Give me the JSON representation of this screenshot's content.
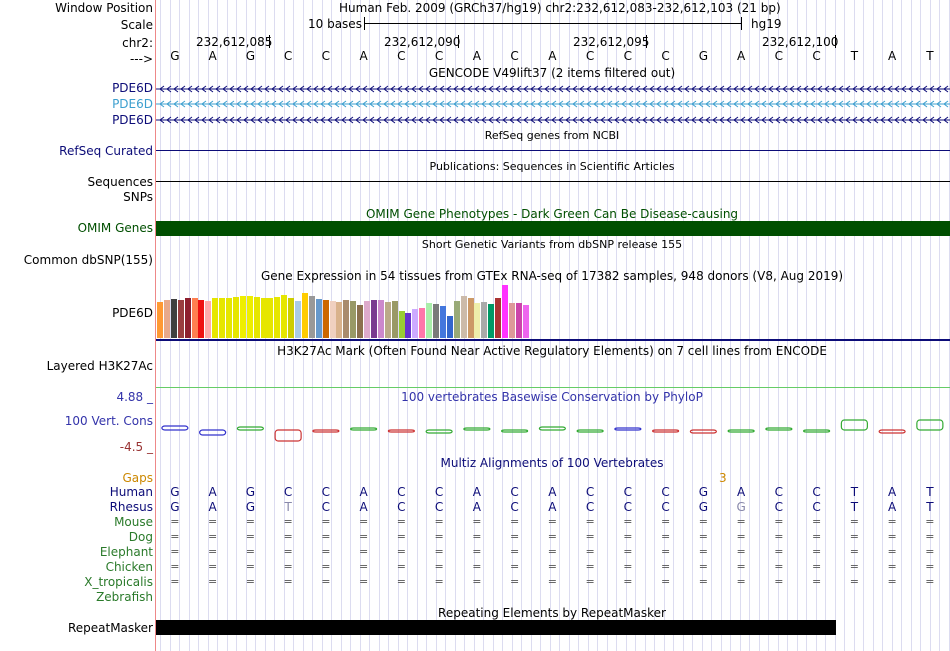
{
  "position": {
    "label": "Window Position",
    "text": "Human Feb. 2009 (GRCh37/hg19)   chr2:232,612,083-232,612,103 (21 bp)"
  },
  "scale": {
    "label": "Scale",
    "bases": "10 bases",
    "assembly": "hg19"
  },
  "chrom": {
    "label": "chr2:",
    "coords": [
      "232,612,085",
      "232,612,090",
      "232,612,095",
      "232,612,100"
    ]
  },
  "sequence": {
    "arrow": "--->",
    "bases": [
      "G",
      "A",
      "G",
      "C",
      "C",
      "A",
      "C",
      "C",
      "A",
      "C",
      "A",
      "C",
      "C",
      "C",
      "G",
      "A",
      "C",
      "C",
      "T",
      "A",
      "T"
    ]
  },
  "gencode": {
    "title": "GENCODE V49lift37 (2 items filtered out)",
    "items": [
      "PDE6D",
      "PDE6D",
      "PDE6D"
    ],
    "colors": [
      "#0c0c78",
      "#3c9fcf",
      "#0c0c78"
    ]
  },
  "refseq": {
    "title": "RefSeq genes from NCBI",
    "label": "RefSeq Curated"
  },
  "publications": {
    "title": "Publications: Sequences in Scientific Articles",
    "label": "Sequences"
  },
  "snps": {
    "label": "SNPs"
  },
  "omim": {
    "title": "OMIM Gene Phenotypes - Dark Green Can Be Disease-causing",
    "label": "OMIM Genes",
    "color": "#004f00"
  },
  "dbsnp": {
    "title": "Short Genetic Variants from dbSNP release 155",
    "label": "Common dbSNP(155)"
  },
  "gtex": {
    "title": "Gene Expression in 54 tissues from GTEx RNA-seq of 17382 samples, 948 donors (V8, Aug 2019)",
    "label": "PDE6D",
    "values": [
      36,
      38,
      39,
      38,
      40,
      40,
      38,
      37,
      40,
      40,
      40,
      41,
      42,
      42,
      41,
      40,
      40,
      41,
      43,
      40,
      37,
      45,
      42,
      39,
      38,
      37,
      36,
      38,
      37,
      33,
      37,
      38,
      38,
      36,
      37,
      27,
      25,
      29,
      30,
      35,
      34,
      32,
      22,
      37,
      42,
      40,
      35,
      36,
      34,
      40,
      53,
      35,
      35,
      33
    ],
    "colors": [
      "#ff9933",
      "#e8a98a",
      "#3f3f3f",
      "#9a3d3f",
      "#8e1f2e",
      "#ff7f50",
      "#ee1111",
      "#ffaaaa",
      "#e6e600",
      "#e6e600",
      "#e6e600",
      "#e6e600",
      "#eeee00",
      "#eeee00",
      "#e6e600",
      "#e6e600",
      "#e6e600",
      "#e6e600",
      "#e6e600",
      "#cdcd00",
      "#aacbe4",
      "#ffcc00",
      "#999999",
      "#6699cc",
      "#cc6600",
      "#f0d0c0",
      "#d9b28c",
      "#a98b6d",
      "#999966",
      "#8b6f4e",
      "#ddaacc",
      "#7a3a8f",
      "#cc88cc",
      "#bbaa88",
      "#999966",
      "#99cc33",
      "#6633cc",
      "#ccaaff",
      "#ff77aa",
      "#aaeeaa",
      "#7a7a7a",
      "#4477dd",
      "#3366cc",
      "#99aa77",
      "#ccbbaa",
      "#cc9966",
      "#eeeeaa",
      "#aaaaaa",
      "#009966",
      "#aa3333",
      "#ff33ff",
      "#dd9999",
      "#cc44aa",
      "#ee66ee"
    ]
  },
  "h3k27ac": {
    "title": "H3K27Ac Mark (Often Found Near Active Regulatory Elements) on 7 cell lines from ENCODE",
    "label": "Layered H3K27Ac"
  },
  "phylop": {
    "title": "100 vertebrates Basewise Conservation by PhyloP",
    "label": "100 Vert. Cons",
    "max": "4.88 _",
    "min": "-4.5 _",
    "values": [
      0.4,
      -0.5,
      0.3,
      -1.1,
      -0.1,
      0.1,
      -0.1,
      -0.3,
      0.2,
      -0.2,
      0.3,
      -0.1,
      0.2,
      -0.1,
      -0.3,
      -0.2,
      0.1,
      -0.2,
      1.0,
      -0.3,
      1.0
    ],
    "colors": [
      "#3333cc",
      "#3333cc",
      "#33aa33",
      "#cc3333",
      "#cc3333",
      "#33aa33",
      "#cc3333",
      "#33aa33",
      "#33aa33",
      "#33aa33",
      "#33aa33",
      "#33aa33",
      "#3333cc",
      "#cc3333",
      "#cc3333",
      "#33aa33",
      "#33aa33",
      "#33aa33",
      "#33aa33",
      "#cc3333",
      "#33aa33"
    ]
  },
  "multiz": {
    "title": "Multiz Alignments of 100 Vertebrates",
    "gaps_label": "Gaps",
    "gap_count": "3",
    "species": [
      "Human",
      "Rhesus",
      "Mouse",
      "Dog",
      "Elephant",
      "Chicken",
      "X_tropicalis",
      "Zebrafish"
    ],
    "human": [
      "G",
      "A",
      "G",
      "C",
      "C",
      "A",
      "C",
      "C",
      "A",
      "C",
      "A",
      "C",
      "C",
      "C",
      "G",
      "A",
      "C",
      "C",
      "T",
      "A",
      "T"
    ],
    "rhesus": [
      "G",
      "A",
      "G",
      "T",
      "C",
      "A",
      "C",
      "C",
      "A",
      "C",
      "A",
      "C",
      "C",
      "C",
      "G",
      "G",
      "C",
      "C",
      "T",
      "A",
      "T"
    ],
    "eq_rows": [
      "Mouse",
      "Dog",
      "Elephant",
      "Chicken",
      "X_tropicalis"
    ],
    "eq_symbol": "="
  },
  "repeatmasker": {
    "title": "Repeating Elements by RepeatMasker",
    "label": "RepeatMasker"
  }
}
